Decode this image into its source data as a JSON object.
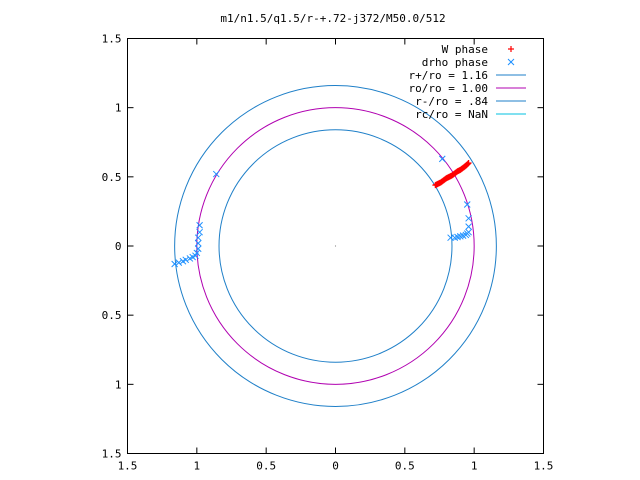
{
  "chart_data": {
    "type": "scatter",
    "title": "m1/n1.5/q1.5/r-+.72-j372/M50.0/512",
    "xlim": [
      -1.5,
      1.5
    ],
    "ylim": [
      -1.5,
      1.5
    ],
    "x_ticks": [
      -1.5,
      -1,
      -0.5,
      0,
      0.5,
      1,
      1.5
    ],
    "y_ticks": [
      -1.5,
      -1,
      -0.5,
      0,
      0.5,
      1,
      1.5
    ],
    "x_tick_labels": [
      "1.5",
      "1",
      "0.5",
      "0",
      "0.5",
      "1",
      "1.5"
    ],
    "y_tick_labels": [
      "1.5",
      "1",
      "0.5",
      "0",
      "0.5",
      "1",
      "1.5"
    ],
    "grid": false,
    "legend_position": "top-right",
    "series": [
      {
        "name": "W phase",
        "kind": "points",
        "marker": "plus",
        "color": "#ff0000",
        "points": [
          [
            0.72,
            0.44
          ],
          [
            0.74,
            0.45
          ],
          [
            0.76,
            0.46
          ],
          [
            0.78,
            0.475
          ],
          [
            0.8,
            0.49
          ],
          [
            0.82,
            0.5
          ],
          [
            0.84,
            0.51
          ],
          [
            0.86,
            0.525
          ],
          [
            0.88,
            0.54
          ],
          [
            0.9,
            0.55
          ],
          [
            0.92,
            0.565
          ],
          [
            0.94,
            0.58
          ],
          [
            0.96,
            0.6
          ]
        ]
      },
      {
        "name": "drho phase",
        "kind": "points",
        "marker": "cross",
        "color": "#1e90ff",
        "points": [
          [
            -1.16,
            -0.13
          ],
          [
            -1.13,
            -0.12
          ],
          [
            -1.1,
            -0.11
          ],
          [
            -1.08,
            -0.1
          ],
          [
            -1.05,
            -0.09
          ],
          [
            -1.03,
            -0.08
          ],
          [
            -1.01,
            -0.07
          ],
          [
            -1.0,
            -0.05
          ],
          [
            -0.99,
            -0.02
          ],
          [
            -0.99,
            0.02
          ],
          [
            -0.99,
            0.06
          ],
          [
            -0.98,
            0.1
          ],
          [
            -0.98,
            0.15
          ],
          [
            -0.86,
            0.52
          ],
          [
            0.77,
            0.63
          ],
          [
            0.83,
            0.06
          ],
          [
            0.86,
            0.06
          ],
          [
            0.88,
            0.065
          ],
          [
            0.9,
            0.07
          ],
          [
            0.92,
            0.075
          ],
          [
            0.94,
            0.08
          ],
          [
            0.95,
            0.09
          ],
          [
            0.96,
            0.1
          ],
          [
            0.96,
            0.14
          ],
          [
            0.96,
            0.2
          ],
          [
            0.95,
            0.3
          ]
        ]
      },
      {
        "name": "r+/ro = 1.16",
        "kind": "circle",
        "radius": 1.16,
        "color": "#1e7fc8"
      },
      {
        "name": "ro/ro = 1.00",
        "kind": "circle",
        "radius": 1.0,
        "color": "#b000b0"
      },
      {
        "name": "r-/ro =  .84",
        "kind": "circle",
        "radius": 0.84,
        "color": "#1e7fc8"
      },
      {
        "name": "rc/ro = NaN",
        "kind": "circle",
        "radius": null,
        "color": "#00c0e0"
      }
    ]
  }
}
